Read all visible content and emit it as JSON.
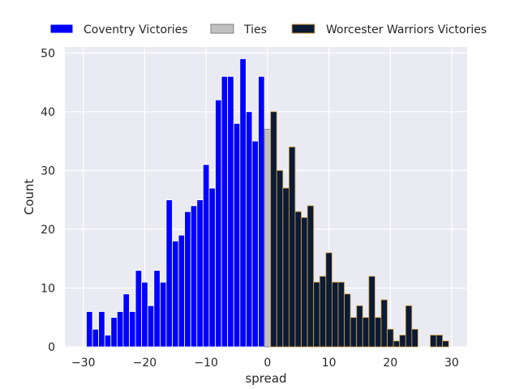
{
  "chart_data": {
    "type": "bar",
    "xlabel": "spread",
    "ylabel": "Count",
    "xlim": [
      -33,
      32.5
    ],
    "ylim": [
      0,
      51
    ],
    "xticks": [
      -30,
      -20,
      -10,
      0,
      10,
      20,
      30
    ],
    "yticks": [
      0,
      10,
      20,
      30,
      40,
      50
    ],
    "grid": true,
    "legend_position": "top",
    "series": [
      {
        "name": "Coventry Victories",
        "color": "#0000ff",
        "edge": "#ffffff",
        "x": [
          -29,
          -28,
          -27,
          -26,
          -25,
          -24,
          -23,
          -22,
          -21,
          -20,
          -19,
          -18,
          -17,
          -16,
          -15,
          -14,
          -13,
          -12,
          -11,
          -10,
          -9,
          -8,
          -7,
          -6,
          -5,
          -4,
          -3,
          -2,
          -1
        ],
        "values": [
          6,
          3,
          6,
          2,
          5,
          6,
          9,
          6,
          13,
          11,
          7,
          13,
          11,
          25,
          18,
          19,
          23,
          24,
          25,
          31,
          27,
          42,
          46,
          46,
          38,
          49,
          40,
          35,
          46
        ]
      },
      {
        "name": "Ties",
        "color": "#c0c0c0",
        "edge": "#808080",
        "x": [
          0
        ],
        "values": [
          37
        ]
      },
      {
        "name": "Worcester Warriors Victories",
        "color": "#0b1a35",
        "edge": "#d4a84a",
        "x": [
          1,
          2,
          3,
          4,
          5,
          6,
          7,
          8,
          9,
          10,
          11,
          12,
          13,
          14,
          15,
          16,
          17,
          18,
          19,
          20,
          21,
          22,
          23,
          24,
          25,
          26,
          27,
          28,
          29
        ],
        "values": [
          40,
          30,
          27,
          34,
          23,
          22,
          24,
          11,
          12,
          16,
          11,
          11,
          9,
          5,
          7,
          5,
          12,
          5,
          8,
          3,
          1,
          2,
          7,
          3,
          0,
          0,
          2,
          2,
          1
        ]
      }
    ]
  }
}
